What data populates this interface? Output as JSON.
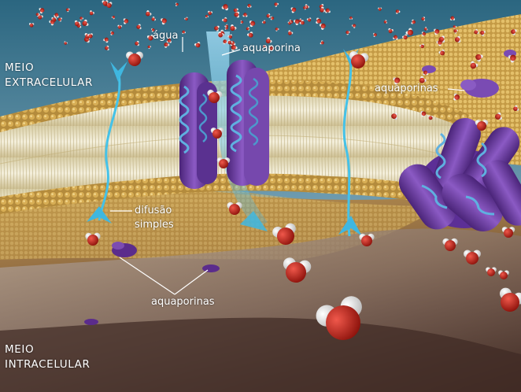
{
  "labels": {
    "meio_extracelular": [
      "MEIO",
      "EXTRACELULAR"
    ],
    "meio_intracelular": [
      "MEIO",
      "INTRACELULAR"
    ],
    "agua": "água",
    "aquaporina": "aquaporina",
    "aquaporinas_top": "aquaporinas",
    "difusao_simples": [
      "difusão",
      "simples"
    ],
    "aquaporinas_bottom": "aquaporinas"
  },
  "colors": {
    "extracellular_top": "#2f6e86",
    "extracellular_bottom": "#b9c7cc",
    "membrane_head": "#d8a53c",
    "membrane_tail": "#efe6c8",
    "cytoplasm_top": "#b58b4a",
    "cytoplasm_bottom": "#3a2a22",
    "protein_purple": "#6b3fa0",
    "helix_blue": "#4f9fd6",
    "water_oxygen": "#c9261d",
    "water_hydrogen": "#f2f2f2",
    "arrow_cyan": "#3fb7e0"
  }
}
